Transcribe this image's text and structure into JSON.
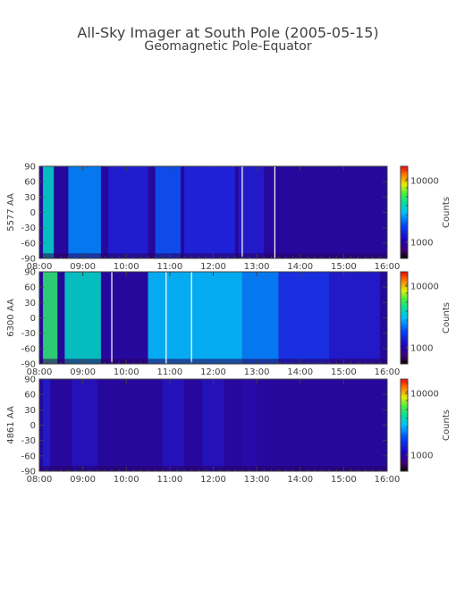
{
  "title_line1": "All-Sky Imager at South Pole (2005-05-15)",
  "title_line2": "Geomagnetic Pole-Equator",
  "chart_data": [
    {
      "type": "heatmap",
      "ylabel": "5577 AA",
      "x_ticks": [
        "08:00",
        "09:00",
        "10:00",
        "11:00",
        "12:00",
        "13:00",
        "14:00",
        "15:00",
        "16:00"
      ],
      "y_ticks": [
        "90",
        "60",
        "30",
        "0",
        "-30",
        "-60",
        "-90"
      ],
      "xlim": [
        "08:00",
        "16:00"
      ],
      "ylim": [
        -90,
        90
      ],
      "colorbar": {
        "label": "Counts",
        "ticks": [
          "10000",
          "1000"
        ],
        "scale": "log"
      },
      "gaps": [
        "12:40",
        "13:25"
      ],
      "bright_bands": [
        {
          "start": "08:05",
          "end": "08:20",
          "level": 0.62
        },
        {
          "start": "08:40",
          "end": "09:25",
          "level": 0.45
        },
        {
          "start": "09:35",
          "end": "10:30",
          "level": 0.22
        },
        {
          "start": "10:40",
          "end": "11:15",
          "level": 0.35
        },
        {
          "start": "11:20",
          "end": "12:30",
          "level": 0.24
        },
        {
          "start": "12:35",
          "end": "13:10",
          "level": 0.2
        }
      ]
    },
    {
      "type": "heatmap",
      "ylabel": "6300 AA",
      "x_ticks": [
        "08:00",
        "09:00",
        "10:00",
        "11:00",
        "12:00",
        "13:00",
        "14:00",
        "15:00",
        "16:00"
      ],
      "y_ticks": [
        "90",
        "60",
        "30",
        "0",
        "-30",
        "-60",
        "-90"
      ],
      "xlim": [
        "08:00",
        "16:00"
      ],
      "ylim": [
        -90,
        90
      ],
      "colorbar": {
        "label": "Counts",
        "ticks": [
          "10000",
          "1000"
        ],
        "scale": "log"
      },
      "gaps": [
        "09:40",
        "10:55",
        "11:30"
      ],
      "bright_bands": [
        {
          "start": "08:05",
          "end": "08:25",
          "level": 0.72
        },
        {
          "start": "08:35",
          "end": "09:25",
          "level": 0.62
        },
        {
          "start": "10:30",
          "end": "11:10",
          "level": 0.55
        },
        {
          "start": "11:10",
          "end": "12:40",
          "level": 0.55
        },
        {
          "start": "12:40",
          "end": "13:30",
          "level": 0.45
        },
        {
          "start": "13:30",
          "end": "14:40",
          "level": 0.28
        },
        {
          "start": "14:40",
          "end": "15:50",
          "level": 0.2
        }
      ]
    },
    {
      "type": "heatmap",
      "ylabel": "4861 AA",
      "x_ticks": [
        "08:00",
        "09:00",
        "10:00",
        "11:00",
        "12:00",
        "13:00",
        "14:00",
        "15:00",
        "16:00"
      ],
      "y_ticks": [
        "90",
        "60",
        "30",
        "0",
        "-30",
        "-60",
        "-90"
      ],
      "xlim": [
        "08:00",
        "16:00"
      ],
      "ylim": [
        -90,
        90
      ],
      "colorbar": {
        "label": "Counts",
        "ticks": [
          "10000",
          "1000"
        ],
        "scale": "log"
      },
      "gaps": [],
      "bright_bands": [
        {
          "start": "08:05",
          "end": "08:15",
          "level": 0.2
        },
        {
          "start": "08:45",
          "end": "09:20",
          "level": 0.16
        },
        {
          "start": "10:50",
          "end": "11:20",
          "level": 0.16
        },
        {
          "start": "11:45",
          "end": "12:15",
          "level": 0.16
        },
        {
          "start": "12:40",
          "end": "13:00",
          "level": 0.12
        }
      ]
    }
  ]
}
